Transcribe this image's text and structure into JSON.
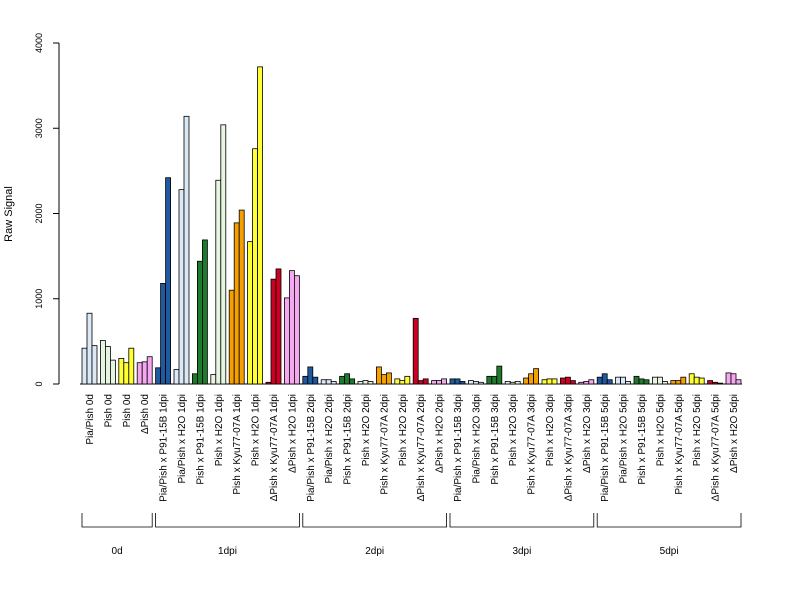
{
  "chart_data": {
    "type": "bar",
    "title": "",
    "xlabel": "",
    "ylabel": "Raw Signal",
    "ylim": [
      0,
      4000
    ],
    "yticks": [
      0,
      1000,
      2000,
      3000,
      4000
    ],
    "grid": false,
    "legend": "none",
    "bar_colors": [
      "#1f5aa0",
      "#dbe8f5",
      "#1f7a2e",
      "#e6f5e0",
      "#f5a000",
      "#ffff33",
      "#cc0022",
      "#f5a8f0"
    ],
    "categories": [
      "Pia/Pish 0d",
      "Pish 0d",
      "Pish 0d",
      "ΔPish 0d",
      "Pia/Pish x P91-15B 1dpi",
      "Pia/Pish x H2O 1dpi",
      "Pish x P91-15B 1dpi",
      "Pish x H2O 1dpi",
      "Pish x Kyu77-07A 1dpi",
      "Pish x H2O 1dpi",
      "ΔPish x Kyu77-07A 1dpi",
      "ΔPish x H2O 1dpi",
      "Pia/Pish x P91-15B 2dpi",
      "Pia/Pish x H2O 2dpi",
      "Pish x P91-15B 2dpi",
      "Pish x H2O 2dpi",
      "Pish x Kyu77-07A 2dpi",
      "Pish x H2O 2dpi",
      "ΔPish x Kyu77-07A 2dpi",
      "ΔPish x H2O 2dpi",
      "Pia/Pish x P91-15B 3dpi",
      "Pia/Pish x H2O 3dpi",
      "Pish x P91-15B 3dpi",
      "Pish x H2O 3dpi",
      "Pish x Kyu77-07A 3dpi",
      "Pish x H2O 3dpi",
      "ΔPish x Kyu77-07A 3dpi",
      "ΔPish x H2O 3dpi",
      "Pia/Pish x P91-15B 5dpi",
      "Pia/Pish x H2O 5dpi",
      "Pish x P91-15B 5dpi",
      "Pish x H2O 5dpi",
      "Pish x Kyu77-07A 5dpi",
      "Pish x H2O 5dpi",
      "ΔPish x Kyu77-07A 5dpi",
      "ΔPish x H2O 5dpi"
    ],
    "category_colors": [
      1,
      3,
      5,
      7,
      0,
      1,
      2,
      3,
      4,
      5,
      6,
      7,
      0,
      1,
      2,
      3,
      4,
      5,
      6,
      7,
      0,
      1,
      2,
      3,
      4,
      5,
      6,
      7,
      0,
      1,
      2,
      3,
      4,
      5,
      6,
      7
    ],
    "values": [
      [
        420,
        830,
        450
      ],
      [
        510,
        440,
        280
      ],
      [
        300,
        250,
        420
      ],
      [
        250,
        260,
        320
      ],
      [
        190,
        1180,
        2420
      ],
      [
        170,
        2280,
        3140
      ],
      [
        120,
        1440,
        1690
      ],
      [
        110,
        2390,
        3040
      ],
      [
        1100,
        1890,
        2040
      ],
      [
        1670,
        2760,
        3720
      ],
      [
        20,
        1230,
        1350
      ],
      [
        1010,
        1330,
        1270
      ],
      [
        90,
        200,
        80
      ],
      [
        50,
        50,
        30
      ],
      [
        90,
        120,
        60
      ],
      [
        30,
        40,
        30
      ],
      [
        200,
        110,
        130
      ],
      [
        60,
        40,
        90
      ],
      [
        770,
        40,
        60
      ],
      [
        40,
        40,
        60
      ],
      [
        60,
        60,
        30
      ],
      [
        40,
        30,
        20
      ],
      [
        90,
        90,
        210
      ],
      [
        30,
        20,
        30
      ],
      [
        70,
        120,
        180
      ],
      [
        50,
        60,
        60
      ],
      [
        70,
        80,
        40
      ],
      [
        20,
        30,
        50
      ],
      [
        80,
        120,
        50
      ],
      [
        80,
        80,
        30
      ],
      [
        90,
        60,
        50
      ],
      [
        80,
        80,
        30
      ],
      [
        40,
        40,
        80
      ],
      [
        120,
        80,
        70
      ],
      [
        40,
        20,
        10
      ],
      [
        130,
        120,
        50
      ]
    ],
    "groups": [
      {
        "label": "0d",
        "start": 0,
        "end": 3
      },
      {
        "label": "1dpi",
        "start": 4,
        "end": 11
      },
      {
        "label": "2dpi",
        "start": 12,
        "end": 19
      },
      {
        "label": "3dpi",
        "start": 20,
        "end": 27
      },
      {
        "label": "5dpi",
        "start": 28,
        "end": 35
      }
    ]
  }
}
